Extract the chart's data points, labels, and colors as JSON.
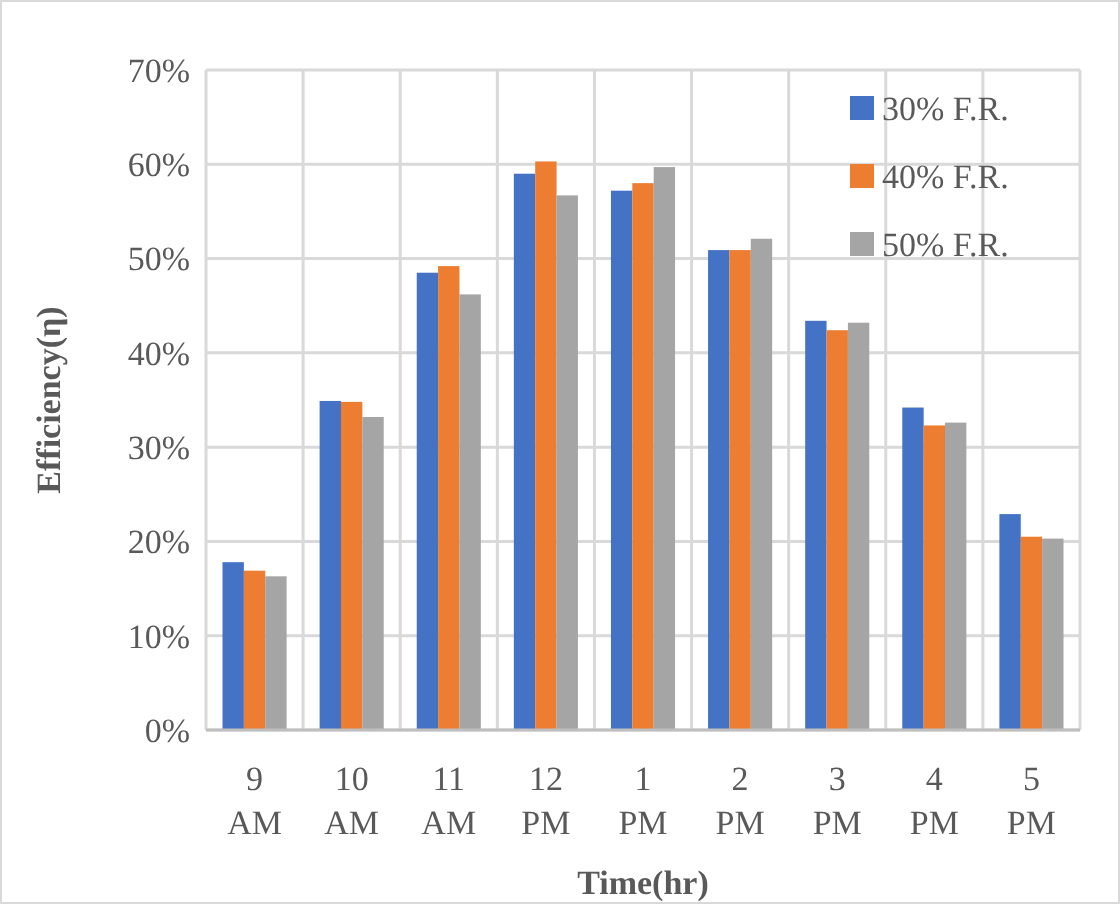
{
  "chart_data": {
    "type": "bar",
    "xlabel": "Time(hr)",
    "ylabel": "Efficiency(η)",
    "categories": [
      "9 AM",
      "10 AM",
      "11 AM",
      "12 PM",
      "1 PM",
      "2 PM",
      "3 PM",
      "4 PM",
      "5 PM"
    ],
    "series": [
      {
        "name": "30% F.R.",
        "color": "#4472c4",
        "values": [
          17.8,
          34.9,
          48.5,
          59.0,
          57.2,
          50.9,
          43.4,
          34.2,
          22.9
        ]
      },
      {
        "name": "40% F.R.",
        "color": "#ed7d31",
        "values": [
          16.9,
          34.8,
          49.2,
          60.3,
          58.0,
          50.9,
          42.4,
          32.3,
          20.5
        ]
      },
      {
        "name": "50% F.R.",
        "color": "#a5a5a5",
        "values": [
          16.3,
          33.2,
          46.2,
          56.7,
          59.7,
          52.1,
          43.2,
          32.6,
          20.3
        ]
      }
    ],
    "ylim": [
      0,
      70
    ],
    "yticks": [
      {
        "value": 0,
        "label": "0%"
      },
      {
        "value": 10,
        "label": "10%"
      },
      {
        "value": 20,
        "label": "20%"
      },
      {
        "value": 30,
        "label": "30%"
      },
      {
        "value": 40,
        "label": "40%"
      },
      {
        "value": 50,
        "label": "50%"
      },
      {
        "value": 60,
        "label": "60%"
      },
      {
        "value": 70,
        "label": "70%"
      }
    ],
    "grid": true,
    "legend": "top right"
  }
}
